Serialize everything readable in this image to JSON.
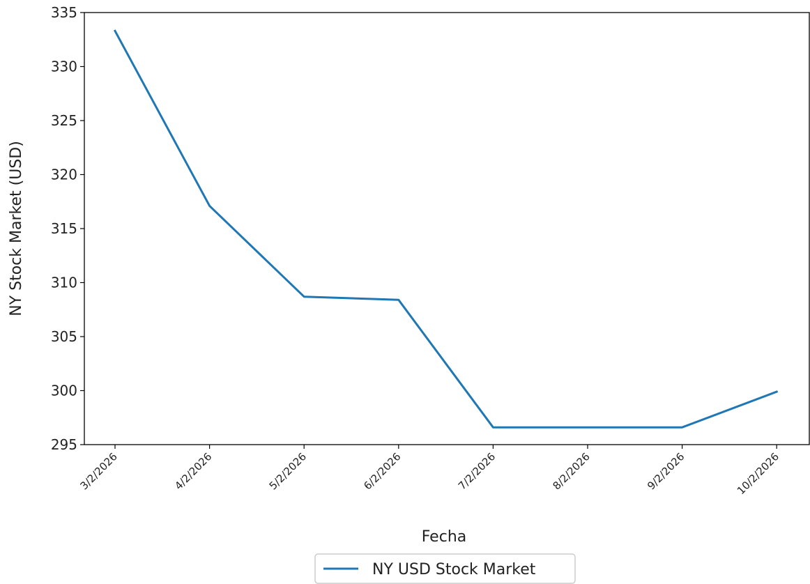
{
  "chart_data": {
    "type": "line",
    "title": "",
    "xlabel": "Fecha",
    "ylabel": "NY Stock Market (USD)",
    "categories": [
      "3/2/2026",
      "4/2/2026",
      "5/2/2026",
      "6/2/2026",
      "7/2/2026",
      "8/2/2026",
      "9/2/2026",
      "10/2/2026"
    ],
    "x": [
      "2026-02-03",
      "2026-02-04",
      "2026-02-05",
      "2026-02-06",
      "2026-02-07",
      "2026-02-08",
      "2026-02-09",
      "2026-02-10"
    ],
    "ylim": [
      295,
      335
    ],
    "yticks": [
      295,
      300,
      305,
      310,
      315,
      320,
      325,
      330,
      335
    ],
    "grid": false,
    "legend_position": "bottom-center",
    "series": [
      {
        "name": "NY USD Stock Market",
        "color": "#1f77b4",
        "points": [
          {
            "x": "2026-02-03",
            "y": 333.3
          },
          {
            "x": "2026-02-04",
            "y": 317.1
          },
          {
            "x": "2026-02-05",
            "y": 308.7
          },
          {
            "x": "2026-02-06",
            "y": 308.4
          },
          {
            "x": "2026-02-07",
            "y": 296.6
          },
          {
            "x": "2026-02-08",
            "y": 296.6
          },
          {
            "x": "2026-02-09",
            "y": 296.6
          },
          {
            "x": "2026-02-10",
            "y": 299.9
          }
        ]
      }
    ]
  }
}
